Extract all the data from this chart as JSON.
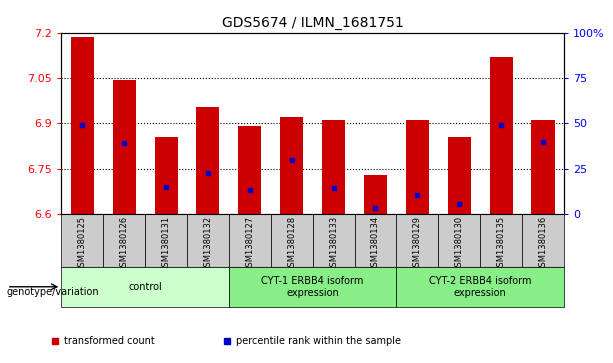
{
  "title": "GDS5674 / ILMN_1681751",
  "samples": [
    "GSM1380125",
    "GSM1380126",
    "GSM1380131",
    "GSM1380132",
    "GSM1380127",
    "GSM1380128",
    "GSM1380133",
    "GSM1380134",
    "GSM1380129",
    "GSM1380130",
    "GSM1380135",
    "GSM1380136"
  ],
  "bar_values": [
    7.185,
    7.045,
    6.855,
    6.955,
    6.89,
    6.92,
    6.91,
    6.73,
    6.91,
    6.855,
    7.12,
    6.91
  ],
  "percentile_values": [
    6.895,
    6.835,
    6.69,
    6.735,
    6.68,
    6.78,
    6.685,
    6.62,
    6.665,
    6.635,
    6.895,
    6.84
  ],
  "ymin": 6.6,
  "ymax": 7.2,
  "yticks_left": [
    6.6,
    6.75,
    6.9,
    7.05,
    7.2
  ],
  "yticks_right": [
    0,
    25,
    50,
    75,
    100
  ],
  "yticks_right_labels": [
    "0",
    "25",
    "50",
    "75",
    "100%"
  ],
  "bar_color": "#cc0000",
  "percentile_color": "#0000cc",
  "bar_width": 0.55,
  "groups": [
    {
      "label": "control",
      "start": 0,
      "end": 3,
      "color": "#ccffcc"
    },
    {
      "label": "CYT-1 ERBB4 isoform\nexpression",
      "start": 4,
      "end": 7,
      "color": "#88ee88"
    },
    {
      "label": "CYT-2 ERBB4 isoform\nexpression",
      "start": 8,
      "end": 11,
      "color": "#88ee88"
    }
  ],
  "tick_bg_color": "#cccccc",
  "legend_items": [
    {
      "color": "#cc0000",
      "label": "transformed count"
    },
    {
      "color": "#0000cc",
      "label": "percentile rank within the sample"
    }
  ],
  "genotype_label": "genotype/variation",
  "grid_color": "black",
  "grid_linestyle": "dotted"
}
